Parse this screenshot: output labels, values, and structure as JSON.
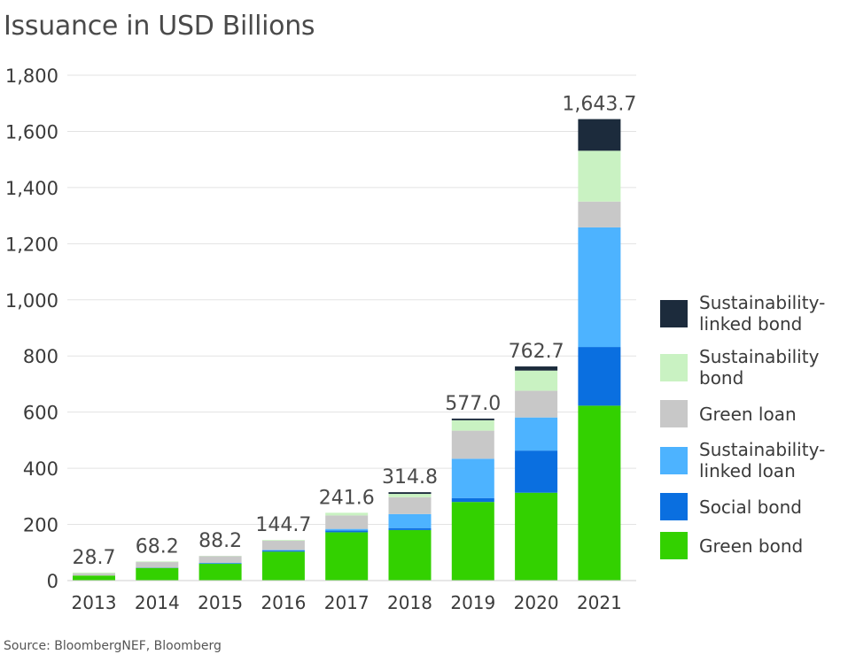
{
  "title": "Issuance in USD Billions",
  "source": "Source: BloombergNEF, Bloomberg",
  "chart_data": {
    "type": "bar",
    "stacked": true,
    "categories": [
      "2013",
      "2014",
      "2015",
      "2016",
      "2017",
      "2018",
      "2019",
      "2020",
      "2021"
    ],
    "ylim": [
      0,
      1800
    ],
    "yticks": [
      "0",
      "200",
      "400",
      "600",
      "800",
      "1,000",
      "1,200",
      "1,400",
      "1,600",
      "1,800"
    ],
    "grid": true,
    "legend_position": "right",
    "totals": [
      "28.7",
      "68.2",
      "88.2",
      "144.7",
      "241.6",
      "314.8",
      "577.0",
      "762.7",
      "1,643.7"
    ],
    "series": [
      {
        "name": "Green bond",
        "color": "#33d100",
        "values": [
          18,
          45,
          60,
          103,
          172,
          180,
          280,
          313,
          623
        ]
      },
      {
        "name": "Social bond",
        "color": "#0a6fe0",
        "values": [
          0,
          1,
          2,
          4,
          6,
          7,
          14,
          150,
          209
        ]
      },
      {
        "name": "Sustainability-linked loan",
        "color": "#4db3ff",
        "values": [
          0,
          0,
          1,
          2,
          6,
          50,
          140,
          118,
          426
        ]
      },
      {
        "name": "Green loan",
        "color": "#c8c8c8",
        "values": [
          8,
          20,
          24,
          33,
          48,
          60,
          100,
          95,
          92
        ]
      },
      {
        "name": "Sustainability bond",
        "color": "#c9f2c2",
        "values": [
          2.7,
          2.2,
          1.2,
          2.7,
          9.6,
          11.8,
          37,
          72,
          181
        ]
      },
      {
        "name": "Sustainability-linked bond",
        "color": "#1c2b3c",
        "values": [
          0,
          0,
          0,
          0,
          0,
          6,
          6,
          14.7,
          112.7
        ]
      }
    ],
    "legend": [
      {
        "label": "Sustainability-linked bond",
        "lines": [
          "Sustainability-",
          "linked bond"
        ],
        "color": "#1c2b3c"
      },
      {
        "label": "Sustainability bond",
        "lines": [
          "Sustainability",
          "bond"
        ],
        "color": "#c9f2c2"
      },
      {
        "label": "Green loan",
        "lines": [
          "Green loan"
        ],
        "color": "#c8c8c8"
      },
      {
        "label": "Sustainability-linked loan",
        "lines": [
          "Sustainability-",
          "linked loan"
        ],
        "color": "#4db3ff"
      },
      {
        "label": "Social bond",
        "lines": [
          "Social bond"
        ],
        "color": "#0a6fe0"
      },
      {
        "label": "Green bond",
        "lines": [
          "Green bond"
        ],
        "color": "#33d100"
      }
    ]
  }
}
